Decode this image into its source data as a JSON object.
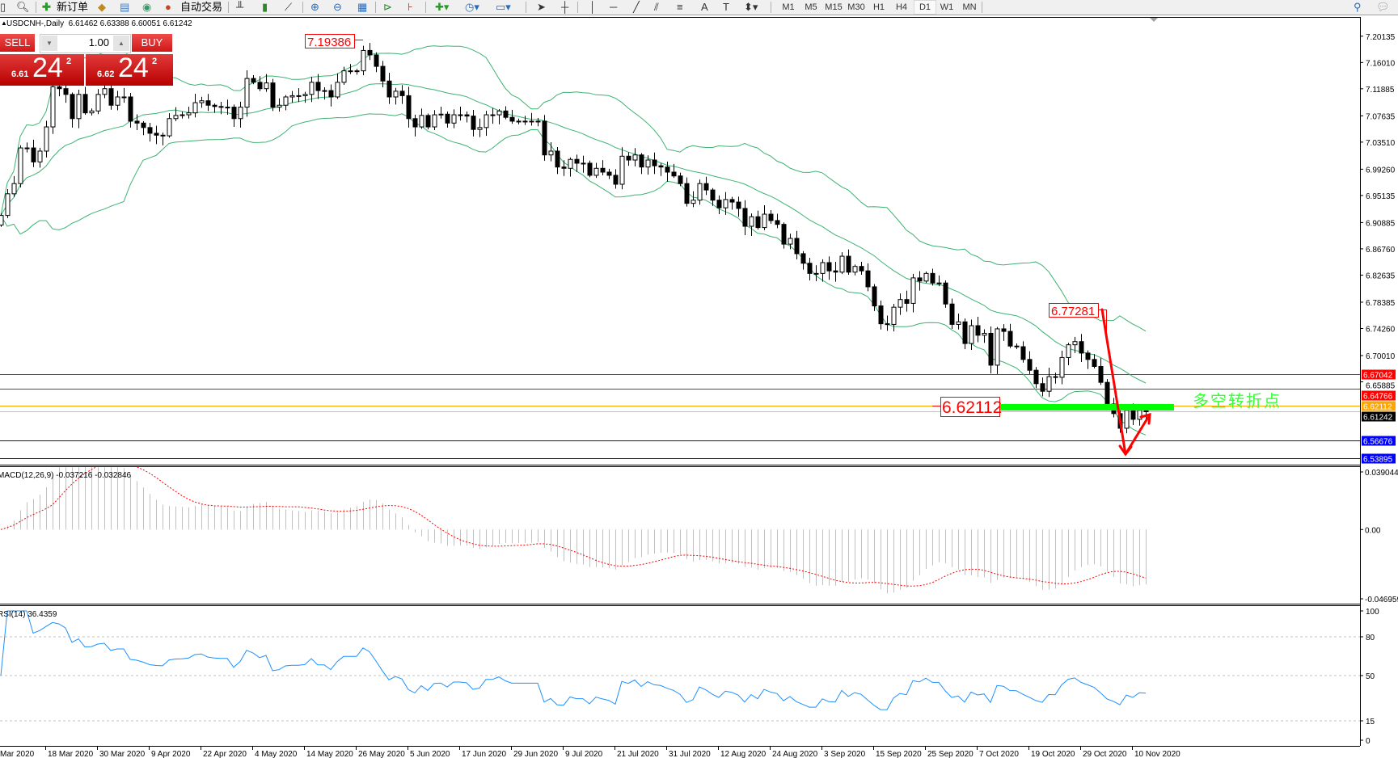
{
  "toolbar": {
    "new_order_label": "新订单",
    "auto_trading_label": "自动交易",
    "timeframes": [
      "M1",
      "M5",
      "M15",
      "M30",
      "H1",
      "H4",
      "D1",
      "W1",
      "MN"
    ],
    "active_timeframe": "D1",
    "icons": [
      "new-chart-icon",
      "zoom-document-icon",
      "new-order-icon",
      "market-watch-icon",
      "navigator-icon",
      "signals-icon",
      "auto-trading-icon",
      "bar-chart-icon",
      "candlestick-icon",
      "line-chart-icon",
      "zoom-in-icon",
      "zoom-out-icon",
      "tile-windows-icon",
      "autoscroll-icon",
      "chart-shift-icon",
      "indicators-icon",
      "periods-icon",
      "templates-icon",
      "cursor-icon",
      "crosshair-icon",
      "vertical-line-icon",
      "horizontal-line-icon",
      "trendline-icon",
      "fibonacci-icon",
      "channel-icon",
      "text-icon",
      "text-label-icon",
      "arrows-icon",
      "search-icon",
      "chat-icon"
    ]
  },
  "chart_header": "USDCNH-,Daily  6.61462 6.63388 6.60051 6.61242",
  "trade_panel": {
    "sell_label": "SELL",
    "buy_label": "BUY",
    "lot": "1.00",
    "sell_price_small": "6.61",
    "sell_price_big": "24",
    "sell_price_sup": "2",
    "buy_price_small": "6.62",
    "buy_price_big": "24",
    "buy_price_sup": "2",
    "color": "#d01818"
  },
  "annotations": {
    "high_label": "7.19386",
    "swing_label": "6.77281",
    "pivot_label": "6.62112",
    "note": "多空转折点",
    "note_color": "#33ff33",
    "arrow_color": "#ff0000"
  },
  "price_axis": {
    "ticks": [
      "7.20135",
      "7.16010",
      "7.11885",
      "7.07635",
      "7.03510",
      "6.99260",
      "6.95135",
      "6.90885",
      "6.86760",
      "6.82635",
      "6.78385",
      "6.74260",
      "6.70010",
      "6.65885"
    ],
    "hlines": [
      {
        "price": "6.67042",
        "color": "#ff0000",
        "label_bg": "#ff0000"
      },
      {
        "price": "6.64766",
        "color": "#ff0000",
        "label_bg": "#ff0000"
      },
      {
        "price": "6.62112",
        "color": "#ffa500",
        "label_bg": "#ffa500"
      },
      {
        "price": "6.61242",
        "color": "#c0c0c0",
        "label_bg": "#000000"
      },
      {
        "price": "6.56676",
        "color": "#0000ff",
        "label_bg": "#0000ff"
      },
      {
        "price": "6.53895",
        "color": "#0000ff",
        "label_bg": "#0000ff"
      }
    ]
  },
  "macd": {
    "label": "MACD(12,26,9) -0.037216 -0.032846",
    "ticks": [
      "0.039044",
      "0.00",
      "-0.046959"
    ],
    "hist_color": "#c0c0c0",
    "signal_color": "#ff0000"
  },
  "rsi": {
    "label": "RSI(14) 36.4359",
    "ticks": [
      "100",
      "80",
      "50",
      "15",
      "0"
    ],
    "color": "#1e90ff"
  },
  "chart_data": {
    "type": "candlestick",
    "symbol": "USDCNH-",
    "timeframe": "Daily",
    "ylim": [
      6.53,
      7.21
    ],
    "bollinger_color": "#3cb371",
    "date_labels": [
      "Mar 2020",
      "18 Mar 2020",
      "30 Mar 2020",
      "9 Apr 2020",
      "22 Apr 2020",
      "4 May 2020",
      "14 May 2020",
      "26 May 2020",
      "5 Jun 2020",
      "17 Jun 2020",
      "29 Jun 2020",
      "9 Jul 2020",
      "21 Jul 2020",
      "31 Jul 2020",
      "12 Aug 2020",
      "24 Aug 2020",
      "3 Sep 2020",
      "15 Sep 2020",
      "25 Sep 2020",
      "7 Oct 2020",
      "19 Oct 2020",
      "29 Oct 2020",
      "10 Nov 2020"
    ],
    "closes": [
      6.92,
      6.954,
      6.97,
      7.026,
      7.026,
      7.004,
      7.021,
      7.059,
      7.122,
      7.119,
      7.11,
      7.072,
      7.11,
      7.081,
      7.084,
      7.11,
      7.119,
      7.093,
      7.106,
      7.106,
      7.068,
      7.065,
      7.058,
      7.049,
      7.046,
      7.045,
      7.072,
      7.077,
      7.078,
      7.081,
      7.097,
      7.1,
      7.093,
      7.091,
      7.09,
      7.09,
      7.072,
      7.09,
      7.135,
      7.129,
      7.119,
      7.128,
      7.09,
      7.093,
      7.106,
      7.108,
      7.108,
      7.11,
      7.129,
      7.116,
      7.116,
      7.106,
      7.129,
      7.147,
      7.147,
      7.147,
      7.179,
      7.172,
      7.154,
      7.131,
      7.106,
      7.115,
      7.108,
      7.072,
      7.059,
      7.077,
      7.059,
      7.078,
      7.079,
      7.065,
      7.078,
      7.078,
      7.076,
      7.055,
      7.058,
      7.078,
      7.078,
      7.084,
      7.074,
      7.068,
      7.068,
      7.068,
      7.068,
      7.068,
      7.015,
      7.021,
      6.996,
      6.994,
      7.008,
      7.002,
      7.002,
      6.983,
      6.994,
      6.988,
      6.983,
      6.969,
      7.013,
      7.007,
      7.015,
      6.996,
      7.007,
      6.998,
      6.996,
      6.988,
      6.982,
      6.97,
      6.939,
      6.944,
      6.97,
      6.96,
      6.944,
      6.932,
      6.945,
      6.941,
      6.931,
      6.903,
      6.918,
      6.901,
      6.922,
      6.912,
      6.906,
      6.875,
      6.884,
      6.86,
      6.845,
      6.829,
      6.829,
      6.846,
      6.833,
      6.831,
      6.856,
      6.831,
      6.84,
      6.833,
      6.808,
      6.778,
      6.75,
      6.749,
      6.776,
      6.788,
      6.782,
      6.822,
      6.817,
      6.829,
      6.814,
      6.814,
      6.781,
      6.749,
      6.753,
      6.719,
      6.747,
      6.732,
      6.735,
      6.685,
      6.742,
      6.738,
      6.715,
      6.714,
      6.694,
      6.677,
      6.656,
      6.644,
      6.667,
      6.666,
      6.697,
      6.717,
      6.722,
      6.704,
      6.694,
      6.683,
      6.658,
      6.624,
      6.609,
      6.586,
      6.614,
      6.6,
      6.614,
      6.612
    ]
  }
}
